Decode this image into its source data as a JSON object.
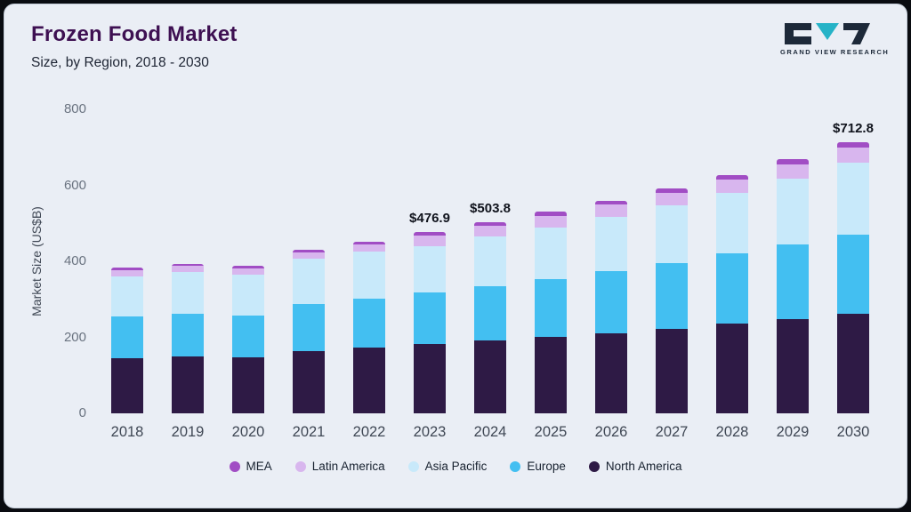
{
  "header": {
    "title": "Frozen Food Market",
    "subtitle": "Size, by Region, 2018 - 2030",
    "logo_text": "GRAND VIEW RESEARCH"
  },
  "theme": {
    "background": "#eaeef5",
    "frame": "#0a0c11",
    "title_color": "#3e1052",
    "logo_teal": "#26b3c7",
    "logo_dark": "#1d2939"
  },
  "chart_data": {
    "type": "bar",
    "stacked": true,
    "title": "Frozen Food Market Size, by Region, 2018 - 2030",
    "xlabel": "",
    "ylabel": "Market Size (US$B)",
    "ylim": [
      0,
      800
    ],
    "yticks": [
      0,
      200,
      400,
      600,
      800
    ],
    "grid": false,
    "legend_position": "bottom",
    "categories": [
      "2018",
      "2019",
      "2020",
      "2021",
      "2022",
      "2023",
      "2024",
      "2025",
      "2026",
      "2027",
      "2028",
      "2029",
      "2030"
    ],
    "series": [
      {
        "name": "North America",
        "color": "#2e1a45",
        "values": [
          145,
          150,
          148,
          163,
          172,
          182,
          192,
          201,
          211,
          222,
          236,
          249,
          263
        ]
      },
      {
        "name": "Europe",
        "color": "#43bff1",
        "values": [
          110,
          113,
          110,
          125,
          130,
          136,
          143,
          152,
          163,
          173,
          184,
          196,
          208
        ]
      },
      {
        "name": "Asia Pacific",
        "color": "#c8e9fa",
        "values": [
          105,
          108,
          107,
          118,
          123,
          122,
          130,
          137,
          143,
          152,
          160,
          172,
          188
        ]
      },
      {
        "name": "Latin America",
        "color": "#d8b6ee",
        "values": [
          17,
          17,
          17,
          18,
          20,
          27,
          28,
          30,
          32,
          33,
          36,
          38,
          40
        ]
      },
      {
        "name": "MEA",
        "color": "#a14dc4",
        "values": [
          6,
          6,
          6,
          6,
          7,
          9.9,
          10.8,
          11,
          11,
          12,
          12,
          13,
          13.8
        ]
      }
    ],
    "legend_order": [
      "MEA",
      "Latin America",
      "Asia Pacific",
      "Europe",
      "North America"
    ],
    "totals": [
      383,
      394,
      388,
      430,
      452,
      476.9,
      503.8,
      531,
      560,
      592,
      628,
      668,
      712.8
    ],
    "annotations": [
      {
        "category": "2023",
        "label": "$476.9"
      },
      {
        "category": "2024",
        "label": "$503.8"
      },
      {
        "category": "2030",
        "label": "$712.8"
      }
    ]
  }
}
